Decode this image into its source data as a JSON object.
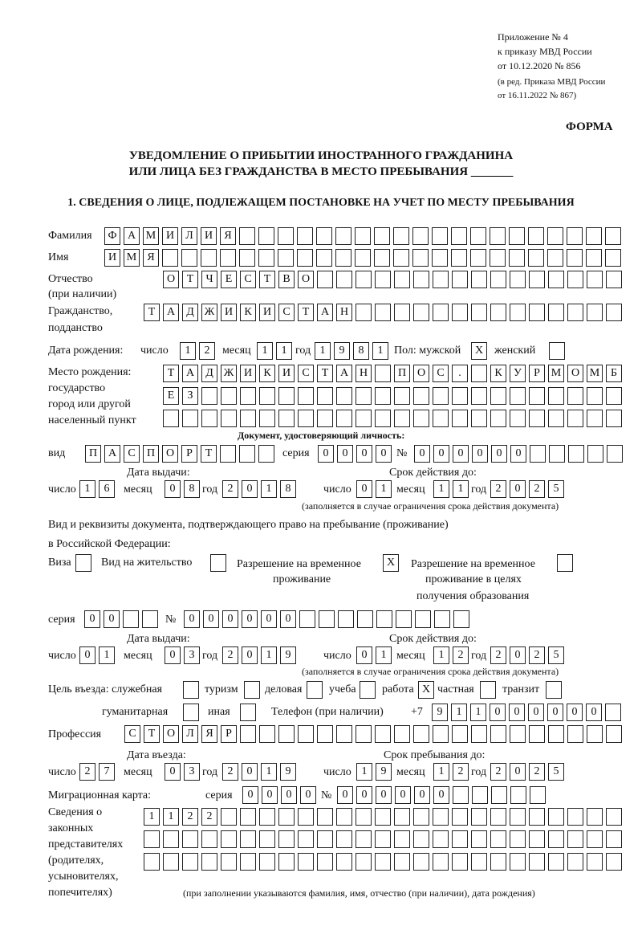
{
  "header": {
    "line1": "Приложение № 4",
    "line2": "к приказу МВД России",
    "line3": "от 10.12.2020 № 856",
    "line4": "(в ред. Приказа МВД России",
    "line5": "от 16.11.2022 № 867)",
    "form_label": "ФОРМА",
    "title1": "УВЕДОМЛЕНИЕ О ПРИБЫТИИ ИНОСТРАННОГО ГРАЖДАНИНА",
    "title2": "ИЛИ ЛИЦА БЕЗ ГРАЖДАНСТВА В МЕСТО ПРЕБЫВАНИЯ _______",
    "section1": "1. СВЕДЕНИЯ О ЛИЦЕ, ПОДЛЕЖАЩЕМ ПОСТАНОВКЕ НА УЧЕТ ПО МЕСТУ ПРЕБЫВАНИЯ"
  },
  "labels": {
    "surname": "Фамилия",
    "name": "Имя",
    "patronymic": "Отчество",
    "patronymic2": "(при наличии)",
    "citizenship": "Гражданство,",
    "citizenship2": "подданство",
    "birth_date": "Дата рождения:",
    "day": "число",
    "month": "месяц",
    "year": "год",
    "sex": "Пол: мужской",
    "female": "женский",
    "birth_place": "Место рождения:",
    "bp2": "государство",
    "bp3": "город или другой",
    "bp4": "населенный пункт",
    "id_doc": "Документ, удостоверяющий личность:",
    "kind": "вид",
    "series": "серия",
    "number": "№",
    "issue_date": "Дата выдачи:",
    "valid_until": "Срок действия до:",
    "valid_note": "(заполняется в случае ограничения срока действия документа)",
    "right_doc1": "Вид и реквизиты документа, подтверждающего право на пребывание (проживание)",
    "right_doc2": "в Российской Федерации:",
    "visa": "Виза",
    "residence": "Вид на жительство",
    "trp1": "Разрешение на временное",
    "trp2": "проживание",
    "trpe1": "Разрешение на временное",
    "trpe2": "проживание в целях",
    "trpe3": "получения образования",
    "purpose": "Цель въезда: служебная",
    "tourism": "туризм",
    "business": "деловая",
    "study": "учеба",
    "work": "работа",
    "private": "частная",
    "transit": "транзит",
    "humanitarian": "гуманитарная",
    "other": "иная",
    "phone": "Телефон (при наличии)",
    "phone_prefix": "+7",
    "profession": "Профессия",
    "entry_date": "Дата въезда:",
    "stay_until": "Срок пребывания до:",
    "migration_card": "Миграционная карта:",
    "reps1": "Сведения о",
    "reps2": "законных",
    "reps3": "представителях",
    "reps4": "(родителях,",
    "reps5": "усыновителях,",
    "reps6": "попечителях)",
    "reps_note": "(при заполнении указываются фамилия, имя, отчество (при наличии), дата рождения)"
  },
  "person": {
    "surname": "ФАМИЛИЯ",
    "name": "ИМЯ",
    "patronymic": "ОТЧЕСТВО",
    "citizenship": "ТАДЖИКИСТАН",
    "birth_day": "12",
    "birth_month": "11",
    "birth_year": "1981",
    "sex_male": "X",
    "sex_female": "",
    "birth_place1": "ТАДЖИКИСТАН ПОС. КУРМОМБ",
    "birth_place2": "ЕЗ",
    "birth_place3": ""
  },
  "id_document": {
    "kind": "ПАСПОРТ",
    "series": "0000",
    "number": "000000",
    "issue_day": "16",
    "issue_month": "08",
    "issue_year": "2018",
    "valid_day": "01",
    "valid_month": "11",
    "valid_year": "2025"
  },
  "right_document": {
    "visa": "",
    "residence": "",
    "trp": "X",
    "trp_edu": "",
    "series": "00",
    "number": "000000",
    "issue_day": "01",
    "issue_month": "03",
    "issue_year": "2019",
    "valid_day": "01",
    "valid_month": "12",
    "valid_year": "2025"
  },
  "purpose": {
    "official": "",
    "tourism": "",
    "business": "",
    "study": "",
    "work": "X",
    "private": "",
    "transit": "",
    "humanitarian": "",
    "other": ""
  },
  "phone": "911000000",
  "profession": "СТОЛЯР",
  "entry": {
    "day": "27",
    "month": "03",
    "year": "2019",
    "stay_day": "19",
    "stay_month": "12",
    "stay_year": "2025"
  },
  "migration_card": {
    "series": "0000",
    "number": "000000"
  },
  "representatives": {
    "line1": "1122",
    "line2": "",
    "line3": ""
  }
}
